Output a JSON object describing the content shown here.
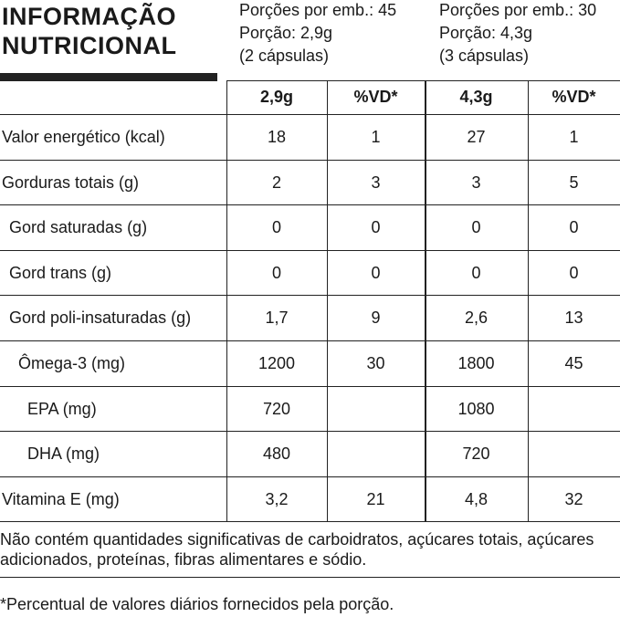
{
  "header": {
    "title_lines": [
      "INFORMAÇÃO",
      "NUTRICIONAL"
    ]
  },
  "servings": [
    {
      "lines": [
        "Porções por emb.: 45",
        "Porção: 2,9g",
        "(2 cápsulas)"
      ]
    },
    {
      "lines": [
        "Porções por emb.: 30",
        "Porção: 4,3g",
        "(3 cápsulas)"
      ]
    }
  ],
  "table": {
    "columns": [
      "2,9g",
      "%VD*",
      "4,3g",
      "%VD*"
    ],
    "rows": [
      [
        "Valor energético (kcal)",
        "18",
        "1",
        "27",
        "1"
      ],
      [
        "Gorduras totais (g)",
        "2",
        "3",
        "3",
        "5"
      ],
      [
        "Gord saturadas (g)",
        "0",
        "0",
        "0",
        "0"
      ],
      [
        "Gord trans (g)",
        "0",
        "0",
        "0",
        "0"
      ],
      [
        "Gord poli-insaturadas (g)",
        "1,7",
        "9",
        "2,6",
        "13"
      ],
      [
        "Ômega-3 (mg)",
        "1200",
        "30",
        "1800",
        "45"
      ],
      [
        "EPA (mg)",
        "720",
        null,
        "1080",
        null
      ],
      [
        "DHA (mg)",
        "480",
        null,
        "720",
        null
      ],
      [
        "Vitamina E (mg)",
        "3,2",
        "21",
        "4,8",
        "32"
      ]
    ]
  },
  "footer": {
    "note": "Não contém quantidades significativas de carboidratos, açúcares totais, açúcares adicionados, proteínas, fibras alimentares e sódio.",
    "footnote": "*Percentual de valores diários fornecidos pela porção."
  }
}
